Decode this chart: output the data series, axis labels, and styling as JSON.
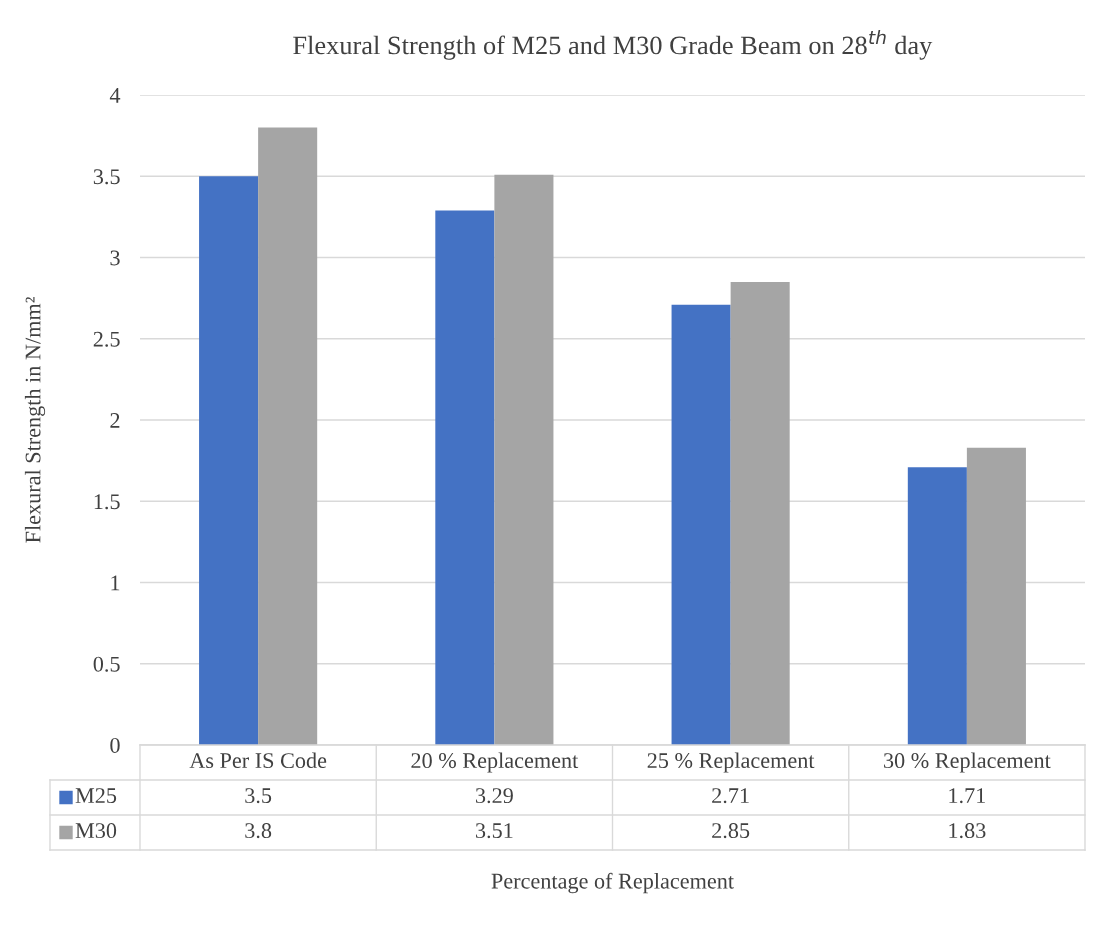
{
  "chart_data": {
    "type": "bar",
    "title": "Flexural Strength of M25 and M30 Grade Beam on 28$^{th}$ day",
    "xlabel": "Percentage of Replacement",
    "ylabel": "Flexural Strength in N/mm²",
    "categories": [
      "As Per IS Code",
      "20 % Replacement",
      "25 % Replacement",
      "30 % Replacement"
    ],
    "series": [
      {
        "name": "M25",
        "color": "#4472c4",
        "values": [
          3.5,
          3.29,
          2.71,
          1.71
        ]
      },
      {
        "name": "M30",
        "color": "#a5a5a5",
        "values": [
          3.8,
          3.51,
          2.85,
          1.83
        ]
      }
    ],
    "ylim": [
      0,
      4
    ],
    "yticks": [
      0,
      0.5,
      1,
      1.5,
      2,
      2.5,
      3,
      3.5,
      4
    ],
    "grid": "y",
    "legend": "bottom",
    "data_labels": true
  }
}
